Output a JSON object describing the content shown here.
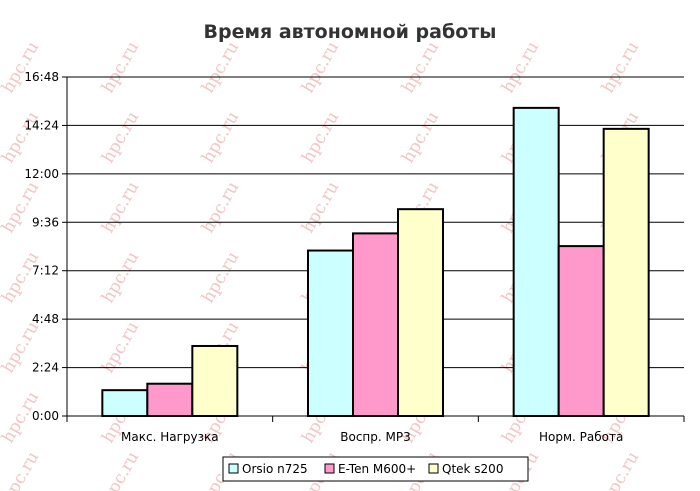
{
  "chart_data": {
    "type": "bar",
    "title": "Время автономной работы",
    "categories": [
      "Макс. Нагрузка",
      "Воспр. MP3",
      "Норм. Работа"
    ],
    "series": [
      {
        "name": "Orsio n725",
        "values": [
          1.28,
          8.2,
          15.27
        ],
        "color": "#ccffff"
      },
      {
        "name": "E-Ten M600+",
        "values": [
          1.6,
          9.05,
          8.42
        ],
        "color": "#ff99cc"
      },
      {
        "name": "Qtek s200",
        "values": [
          3.47,
          10.25,
          14.23
        ],
        "color": "#ffffcc"
      }
    ],
    "y_unit": "hours",
    "ylim": [
      0,
      16.8
    ],
    "yticks": [
      0,
      2.4,
      4.8,
      7.2,
      9.6,
      12,
      14.4,
      16.8
    ],
    "ytick_labels": [
      "0:00",
      "2:24",
      "4:48",
      "7:12",
      "9:36",
      "12:00",
      "14:24",
      "16:48"
    ],
    "grid": true,
    "legend_position": "bottom",
    "watermark": "hpc.ru"
  }
}
